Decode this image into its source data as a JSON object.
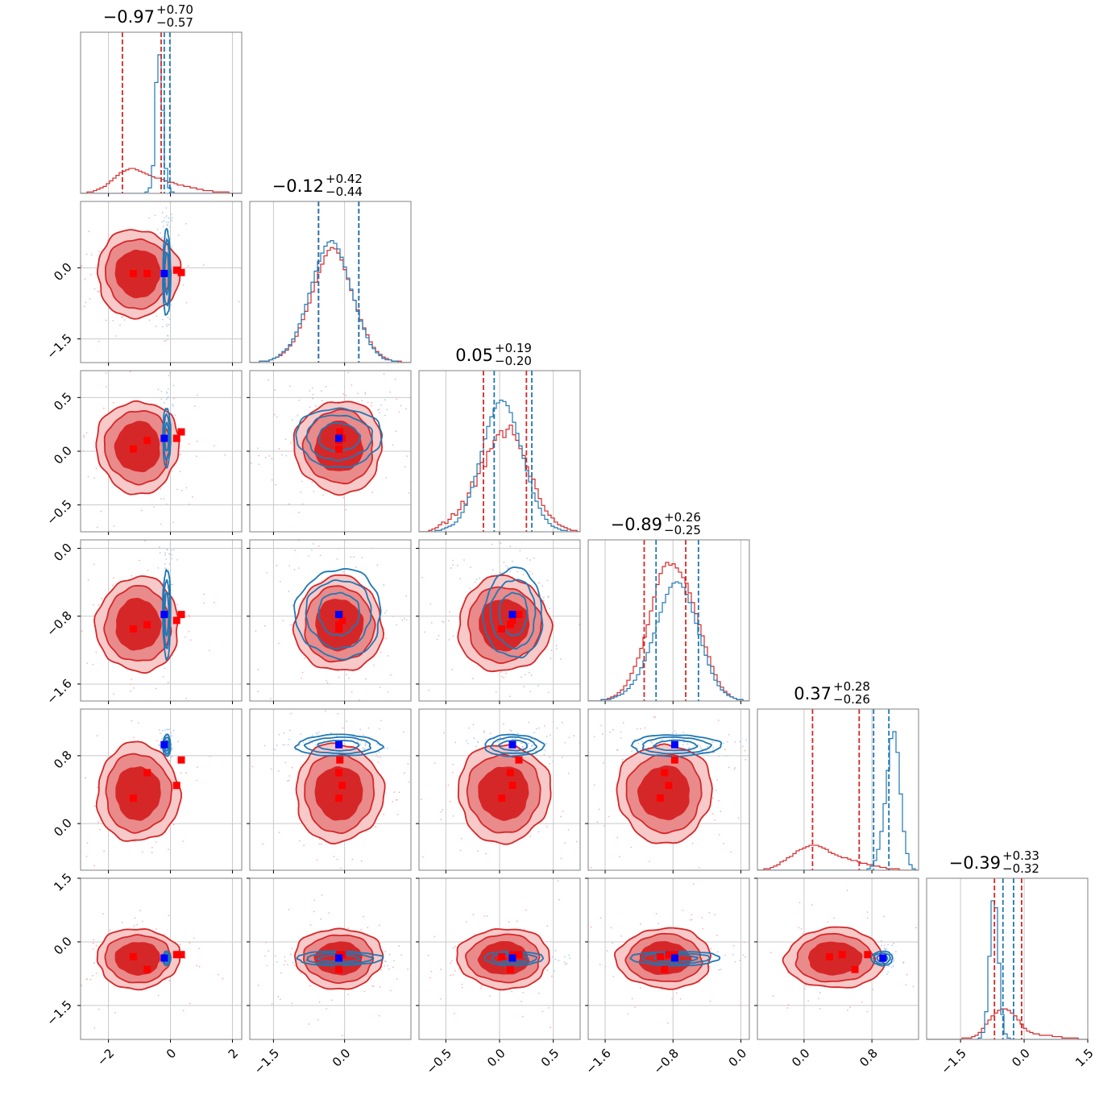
{
  "chart_data": {
    "type": "corner",
    "n_params": 6,
    "colors": {
      "posterior_a": "#d62728",
      "posterior_b": "#1f77b4",
      "truth_marker": "#0000ff",
      "sample_marker": "#ff0000",
      "grid": "#c8c8c8"
    },
    "titles": [
      {
        "median": "−0.97",
        "plus": "+0.70",
        "minus": "−0.57"
      },
      {
        "median": "−0.12",
        "plus": "+0.42",
        "minus": "−0.44"
      },
      {
        "median": "0.05",
        "plus": "+0.19",
        "minus": "−0.20"
      },
      {
        "median": "−0.89",
        "plus": "+0.26",
        "minus": "−0.25"
      },
      {
        "median": "0.37",
        "plus": "+0.28",
        "minus": "−0.26"
      },
      {
        "median": "−0.39",
        "plus": "+0.33",
        "minus": "−0.32"
      }
    ],
    "ranges": [
      [
        -2.9,
        2.3
      ],
      [
        -2.0,
        1.4
      ],
      [
        -0.75,
        0.75
      ],
      [
        -1.8,
        0.1
      ],
      [
        -0.55,
        1.35
      ],
      [
        -2.3,
        1.5
      ]
    ],
    "ticks": [
      {
        "values": [
          -2,
          0,
          2
        ],
        "labels": [
          "−2",
          "0",
          "2"
        ]
      },
      {
        "values": [
          -1.5,
          0.0
        ],
        "labels": [
          "−1.5",
          "0.0"
        ]
      },
      {
        "values": [
          -0.5,
          0.0,
          0.5
        ],
        "labels": [
          "−0.5",
          "0.0",
          "0.5"
        ]
      },
      {
        "values": [
          -1.6,
          -0.8,
          0.0
        ],
        "labels": [
          "−1.6",
          "−0.8",
          "0.0"
        ]
      },
      {
        "values": [
          0.0,
          0.8
        ],
        "labels": [
          "0.0",
          "0.8"
        ]
      },
      {
        "values": [
          -1.5,
          0.0,
          1.5
        ],
        "labels": [
          "−1.5",
          "0.0",
          "1.5"
        ]
      }
    ],
    "truths": [
      -0.2,
      -0.12,
      0.12,
      -0.78,
      0.93,
      -0.38
    ],
    "posterior_a": {
      "mean": [
        -1.05,
        -0.12,
        0.04,
        -0.9,
        0.36,
        -0.39
      ],
      "sd": [
        0.62,
        0.43,
        0.2,
        0.26,
        0.27,
        0.33
      ],
      "quantiles": [
        [
          -1.55,
          -0.3
        ],
        [
          -0.55,
          0.3
        ],
        [
          -0.15,
          0.25
        ],
        [
          -1.14,
          -0.65
        ],
        [
          0.1,
          0.65
        ],
        [
          -0.7,
          -0.06
        ]
      ]
    },
    "posterior_b": {
      "mean": [
        -0.12,
        -0.12,
        0.13,
        -0.77,
        0.92,
        -0.39
      ],
      "sd": [
        0.06,
        0.43,
        0.13,
        0.25,
        0.06,
        0.08
      ],
      "quantiles": [
        [
          -0.2,
          -0.02
        ],
        [
          -0.55,
          0.3
        ],
        [
          -0.05,
          0.3
        ],
        [
          -1.0,
          -0.5
        ],
        [
          0.82,
          1.0
        ],
        [
          -0.5,
          -0.25
        ]
      ]
    },
    "sample_markers": [
      [
        -1.2,
        -0.12,
        0.02,
        -0.95,
        0.3,
        -0.35
      ],
      [
        -0.75,
        -0.12,
        0.1,
        -0.9,
        0.6,
        -0.65
      ],
      [
        0.2,
        -0.05,
        0.12,
        -0.85,
        0.45,
        -0.3
      ],
      [
        0.35,
        -0.1,
        0.18,
        -0.78,
        0.75,
        -0.3
      ]
    ],
    "histograms": {
      "posterior_a": [
        [
          0,
          0,
          1,
          1,
          2,
          3,
          4,
          5,
          7,
          9,
          11,
          13,
          15,
          16,
          17,
          18,
          18,
          17,
          16,
          15,
          14,
          13,
          12,
          11,
          11,
          10,
          9,
          8,
          8,
          7,
          6,
          6,
          5,
          5,
          4,
          4,
          3,
          3,
          2,
          2,
          2,
          1,
          1,
          1,
          1,
          1,
          0,
          0,
          0,
          0
        ],
        [
          0,
          0,
          0,
          1,
          1,
          1,
          2,
          3,
          4,
          5,
          7,
          9,
          12,
          15,
          19,
          25,
          31,
          37,
          43,
          51,
          58,
          65,
          71,
          77,
          81,
          83,
          82,
          79,
          74,
          67,
          60,
          52,
          45,
          38,
          31,
          25,
          20,
          15,
          11,
          8,
          6,
          4,
          3,
          2,
          1,
          1,
          1,
          0,
          0,
          0
        ],
        [
          0,
          0,
          0,
          1,
          2,
          3,
          5,
          7,
          6,
          9,
          13,
          12,
          16,
          22,
          20,
          28,
          36,
          33,
          42,
          50,
          47,
          58,
          60,
          66,
          70,
          73,
          68,
          74,
          77,
          70,
          66,
          60,
          55,
          47,
          40,
          38,
          31,
          24,
          19,
          15,
          12,
          10,
          7,
          5,
          4,
          3,
          2,
          1,
          1,
          0
        ],
        [
          0,
          0,
          0,
          0,
          1,
          1,
          2,
          3,
          4,
          6,
          8,
          11,
          15,
          20,
          25,
          31,
          38,
          46,
          55,
          65,
          75,
          84,
          92,
          97,
          100,
          98,
          99,
          96,
          93,
          89,
          85,
          78,
          71,
          63,
          55,
          47,
          39,
          32,
          25,
          19,
          14,
          10,
          7,
          5,
          3,
          2,
          1,
          1,
          0,
          0
        ],
        [
          0,
          0,
          1,
          1,
          2,
          3,
          4,
          6,
          7,
          9,
          10,
          12,
          14,
          15,
          16,
          17,
          18,
          18,
          18,
          17,
          16,
          15,
          13,
          12,
          11,
          10,
          9,
          9,
          8,
          7,
          7,
          6,
          5,
          5,
          4,
          4,
          3,
          3,
          2,
          2,
          1,
          1,
          1,
          1,
          0,
          0,
          0,
          0,
          0,
          0
        ],
        [
          0,
          0,
          0,
          0,
          0,
          0,
          0,
          0,
          0,
          0,
          0,
          1,
          1,
          1,
          2,
          3,
          5,
          8,
          11,
          14,
          17,
          19,
          21,
          22,
          22,
          21,
          19,
          17,
          14,
          11,
          8,
          6,
          5,
          4,
          4,
          3,
          3,
          3,
          3,
          2,
          2,
          2,
          1,
          1,
          1,
          1,
          1,
          0,
          0,
          0
        ]
      ],
      "posterior_b": [
        [
          0,
          0,
          0,
          0,
          0,
          0,
          0,
          0,
          0,
          0,
          0,
          0,
          0,
          0,
          0,
          0,
          0,
          0,
          0,
          0,
          1,
          4,
          20,
          80,
          100,
          60,
          18,
          4,
          1,
          0,
          0,
          0,
          0,
          0,
          0,
          0,
          0,
          0,
          0,
          0,
          0,
          0,
          0,
          0,
          0,
          0,
          0,
          0,
          0,
          0
        ],
        [
          0,
          0,
          0,
          1,
          1,
          1,
          2,
          3,
          4,
          6,
          8,
          10,
          13,
          17,
          22,
          28,
          35,
          42,
          50,
          58,
          66,
          73,
          79,
          84,
          87,
          88,
          86,
          82,
          76,
          69,
          61,
          53,
          45,
          37,
          30,
          24,
          18,
          13,
          10,
          7,
          5,
          3,
          2,
          2,
          1,
          1,
          0,
          0,
          0,
          0
        ],
        [
          0,
          0,
          0,
          0,
          0,
          1,
          1,
          2,
          3,
          4,
          5,
          7,
          10,
          14,
          19,
          25,
          32,
          40,
          49,
          58,
          67,
          76,
          83,
          89,
          93,
          95,
          94,
          91,
          86,
          79,
          71,
          62,
          53,
          44,
          36,
          28,
          22,
          17,
          12,
          9,
          6,
          4,
          3,
          2,
          1,
          1,
          0,
          0,
          0,
          0
        ],
        [
          0,
          0,
          0,
          0,
          1,
          1,
          1,
          2,
          3,
          4,
          5,
          7,
          9,
          12,
          15,
          19,
          24,
          29,
          35,
          42,
          49,
          57,
          64,
          71,
          77,
          82,
          85,
          86,
          85,
          82,
          77,
          71,
          64,
          56,
          48,
          40,
          33,
          26,
          20,
          15,
          11,
          8,
          6,
          4,
          3,
          2,
          1,
          1,
          0,
          0
        ],
        [
          0,
          0,
          0,
          0,
          0,
          0,
          0,
          0,
          0,
          0,
          0,
          0,
          0,
          0,
          0,
          0,
          0,
          0,
          0,
          0,
          0,
          0,
          0,
          0,
          0,
          0,
          0,
          0,
          0,
          0,
          0,
          0,
          0,
          0,
          1,
          3,
          7,
          15,
          28,
          48,
          72,
          95,
          100,
          85,
          55,
          28,
          12,
          4,
          1,
          0
        ],
        [
          0,
          0,
          0,
          0,
          0,
          0,
          0,
          0,
          0,
          0,
          0,
          0,
          0,
          0,
          0,
          0,
          1,
          5,
          20,
          60,
          100,
          95,
          55,
          18,
          4,
          1,
          0,
          0,
          0,
          0,
          0,
          0,
          0,
          0,
          0,
          0,
          0,
          0,
          0,
          0,
          0,
          0,
          0,
          0,
          0,
          0,
          0,
          0,
          0,
          0
        ]
      ]
    }
  }
}
